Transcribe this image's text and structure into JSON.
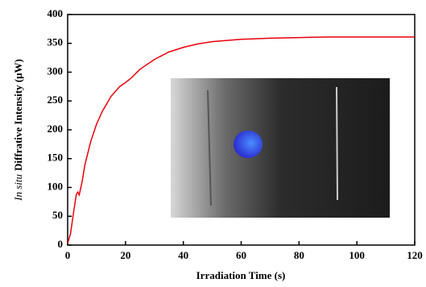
{
  "chart_data": {
    "type": "line",
    "xlabel": "Irradiation Time (s)",
    "ylabel_prefix": "In situ",
    "ylabel": "Diffrative Intensity (μW)",
    "x": [
      0,
      1,
      2,
      3,
      3.5,
      4,
      5,
      6,
      8,
      10,
      12,
      15,
      18,
      20,
      22,
      25,
      30,
      35,
      40,
      45,
      50,
      60,
      70,
      80,
      90,
      100,
      110,
      120
    ],
    "series": [
      {
        "color": "#e8000b",
        "values": [
          3,
          20,
          55,
          88,
          92,
          87,
          110,
          140,
          180,
          210,
          232,
          258,
          275,
          282,
          290,
          305,
          322,
          335,
          343,
          349,
          353,
          357,
          359,
          360,
          361,
          361,
          361,
          361
        ]
      }
    ],
    "xlim": [
      0,
      120
    ],
    "xticks": [
      0,
      20,
      40,
      60,
      80,
      100,
      120
    ],
    "ylim": [
      0,
      400
    ],
    "yticks": [
      0,
      50,
      100,
      150,
      200,
      250,
      300,
      350,
      400
    ]
  }
}
